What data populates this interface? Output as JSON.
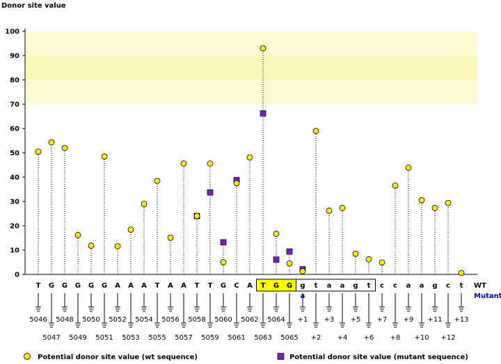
{
  "chart_data": {
    "type": "scatter",
    "ylabel": "Donor site value",
    "ylim": [
      0,
      100
    ],
    "yticks": [
      0,
      10,
      20,
      30,
      40,
      50,
      60,
      70,
      80,
      90,
      100
    ],
    "grid": false,
    "highlight_band": {
      "from": 70,
      "to": 100,
      "color": "#fdfbd2",
      "core_from": 80,
      "core_to": 90,
      "core_color": "#fbf7b8"
    },
    "wt_row_label": "WT",
    "mutant_row_label": "Mutant",
    "colors": {
      "wt": "#f5e814",
      "mutant": "#7a1fbf",
      "box": "#ffff00",
      "mutant_text": "#0000cc"
    },
    "positions": [
      {
        "label": "5046",
        "wt": "T",
        "wt_value": 50.5
      },
      {
        "label": "5047",
        "wt": "G",
        "wt_value": 54.3
      },
      {
        "label": "5048",
        "wt": "G",
        "wt_value": 52
      },
      {
        "label": "5049",
        "wt": "G",
        "wt_value": 16.2
      },
      {
        "label": "5050",
        "wt": "G",
        "wt_value": 11.8
      },
      {
        "label": "5051",
        "wt": "G",
        "wt_value": 48.5
      },
      {
        "label": "5052",
        "wt": "A",
        "wt_value": 11.6
      },
      {
        "label": "5053",
        "wt": "A",
        "wt_value": 18.4
      },
      {
        "label": "5054",
        "wt": "A",
        "wt_value": 29
      },
      {
        "label": "5055",
        "wt": "T",
        "wt_value": 38.5
      },
      {
        "label": "5056",
        "wt": "A",
        "wt_value": 15.1
      },
      {
        "label": "5057",
        "wt": "A",
        "wt_value": 45.6
      },
      {
        "label": "5058",
        "wt": "T",
        "wt_value": 24,
        "mut_value": 24
      },
      {
        "label": "5059",
        "wt": "T",
        "wt_value": 45.6,
        "mut_value": 33.7
      },
      {
        "label": "5060",
        "wt": "G",
        "wt_value": 5,
        "mut_value": 13.2
      },
      {
        "label": "5061",
        "wt": "C",
        "wt_value": 37.5,
        "mut_value": 38.8
      },
      {
        "label": "5062",
        "wt": "A",
        "wt_value": 48.1
      },
      {
        "label": "5063",
        "wt": "T",
        "wt_value": 93,
        "mut_value": 66.2,
        "boxed": true
      },
      {
        "label": "5064",
        "wt": "G",
        "wt_value": 16.7,
        "mut_value": 6.1,
        "boxed": true
      },
      {
        "label": "5065",
        "wt": "G",
        "wt_value": 4.5,
        "mut_value": 9.4,
        "boxed": true
      },
      {
        "label": "+1",
        "wt": "g",
        "mutant": "a",
        "wt_value": 1.3,
        "mut_value": 2.1,
        "boxed": true
      },
      {
        "label": "+2",
        "wt": "t",
        "wt_value": 59,
        "boxed": true
      },
      {
        "label": "+3",
        "wt": "a",
        "wt_value": 26.2,
        "boxed": true
      },
      {
        "label": "+4",
        "wt": "a",
        "wt_value": 27.3,
        "boxed": true
      },
      {
        "label": "+5",
        "wt": "g",
        "wt_value": 8.5,
        "boxed": true
      },
      {
        "label": "+6",
        "wt": "t",
        "wt_value": 6.2,
        "boxed": true
      },
      {
        "label": "+7",
        "wt": "c",
        "wt_value": 4.9
      },
      {
        "label": "+8",
        "wt": "c",
        "wt_value": 36.5
      },
      {
        "label": "+9",
        "wt": "a",
        "wt_value": 43.9
      },
      {
        "label": "+10",
        "wt": "a",
        "wt_value": 30.5
      },
      {
        "label": "+11",
        "wt": "g",
        "wt_value": 27.3
      },
      {
        "label": "+12",
        "wt": "c",
        "wt_value": 29.4
      },
      {
        "label": "+13",
        "wt": "t",
        "wt_value": 0.6
      }
    ],
    "legend": {
      "wt": "Potential donor site value (wt sequence)",
      "mutant": "Potential donor site value (mutant sequence)",
      "placement": "bottom"
    }
  }
}
